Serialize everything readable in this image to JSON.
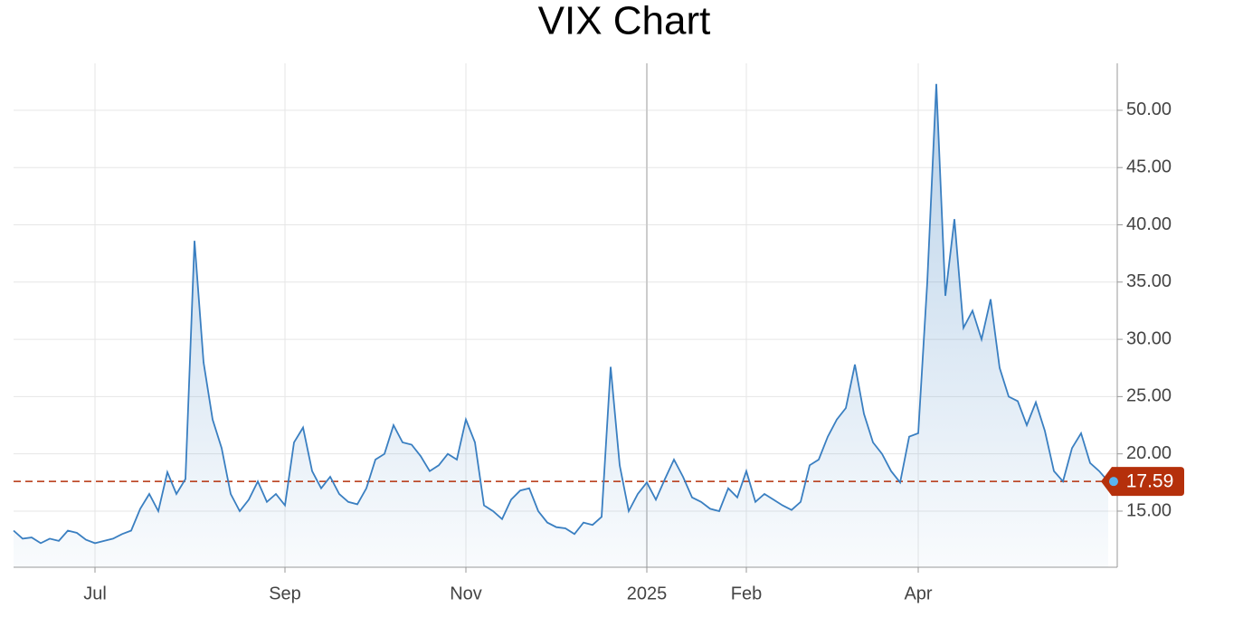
{
  "chart_data": {
    "type": "line",
    "title": "VIX Chart",
    "categories": [
      null,
      null,
      null,
      null,
      null,
      null,
      null,
      null,
      null,
      "Jul",
      null,
      null,
      null,
      null,
      null,
      null,
      null,
      null,
      null,
      null,
      null,
      null,
      null,
      null,
      null,
      null,
      null,
      null,
      null,
      null,
      "Sep",
      null,
      null,
      null,
      null,
      null,
      null,
      null,
      null,
      null,
      null,
      null,
      null,
      null,
      null,
      null,
      null,
      null,
      null,
      null,
      "Nov",
      null,
      null,
      null,
      null,
      null,
      null,
      null,
      null,
      null,
      null,
      null,
      null,
      null,
      null,
      null,
      null,
      null,
      null,
      null,
      "2025",
      null,
      null,
      null,
      null,
      null,
      null,
      null,
      null,
      null,
      null,
      "Feb",
      null,
      null,
      null,
      null,
      null,
      null,
      null,
      null,
      null,
      null,
      null,
      null,
      null,
      null,
      null,
      null,
      null,
      null,
      "Apr",
      null,
      null,
      null,
      null,
      null,
      null,
      null,
      null,
      null,
      null,
      null,
      null,
      null,
      null,
      null,
      null,
      null,
      null,
      null,
      null,
      null
    ],
    "series": [
      {
        "name": "VIX",
        "color": "#3a7fc1",
        "values": [
          13.3,
          12.6,
          12.7,
          12.2,
          12.6,
          12.4,
          13.3,
          13.1,
          12.5,
          12.2,
          12.4,
          12.6,
          13.0,
          13.3,
          15.2,
          16.5,
          15.0,
          18.4,
          16.5,
          17.8,
          38.6,
          28.0,
          23.0,
          20.5,
          16.5,
          15.0,
          16.0,
          17.6,
          15.8,
          16.5,
          15.5,
          21.0,
          22.3,
          18.5,
          17.0,
          18.0,
          16.5,
          15.8,
          15.6,
          17.0,
          19.5,
          20.0,
          22.5,
          21.0,
          20.8,
          19.8,
          18.5,
          19.0,
          20.0,
          19.5,
          23.0,
          21.0,
          15.5,
          15.0,
          14.3,
          16.0,
          16.8,
          17.0,
          15.0,
          14.0,
          13.6,
          13.5,
          13.0,
          14.0,
          13.8,
          14.5,
          27.6,
          19.0,
          15.0,
          16.5,
          17.5,
          16.0,
          17.8,
          19.5,
          18.0,
          16.2,
          15.8,
          15.2,
          15.0,
          17.0,
          16.2,
          18.5,
          15.8,
          16.5,
          16.0,
          15.5,
          15.1,
          15.8,
          19.0,
          19.5,
          21.5,
          23.0,
          24.0,
          27.8,
          23.5,
          21.0,
          20.0,
          18.5,
          17.5,
          21.5,
          21.8,
          35.0,
          52.3,
          33.8,
          40.5,
          31.0,
          32.5,
          30.0,
          33.5,
          27.5,
          25.0,
          24.6,
          22.5,
          24.5,
          22.0,
          18.5,
          17.6,
          20.5,
          21.8,
          19.2,
          18.5,
          17.59
        ]
      }
    ],
    "ylim": [
      10.1,
      54.1
    ],
    "yticks": [
      {
        "value": 15,
        "label": "15.00"
      },
      {
        "value": 20,
        "label": "20.00"
      },
      {
        "value": 25,
        "label": "25.00"
      },
      {
        "value": 30,
        "label": "30.00"
      },
      {
        "value": 35,
        "label": "35.00"
      },
      {
        "value": 40,
        "label": "40.00"
      },
      {
        "value": 45,
        "label": "45.00"
      },
      {
        "value": 50,
        "label": "50.00"
      }
    ],
    "grid": true,
    "last_label_color": "#b5300b"
  }
}
